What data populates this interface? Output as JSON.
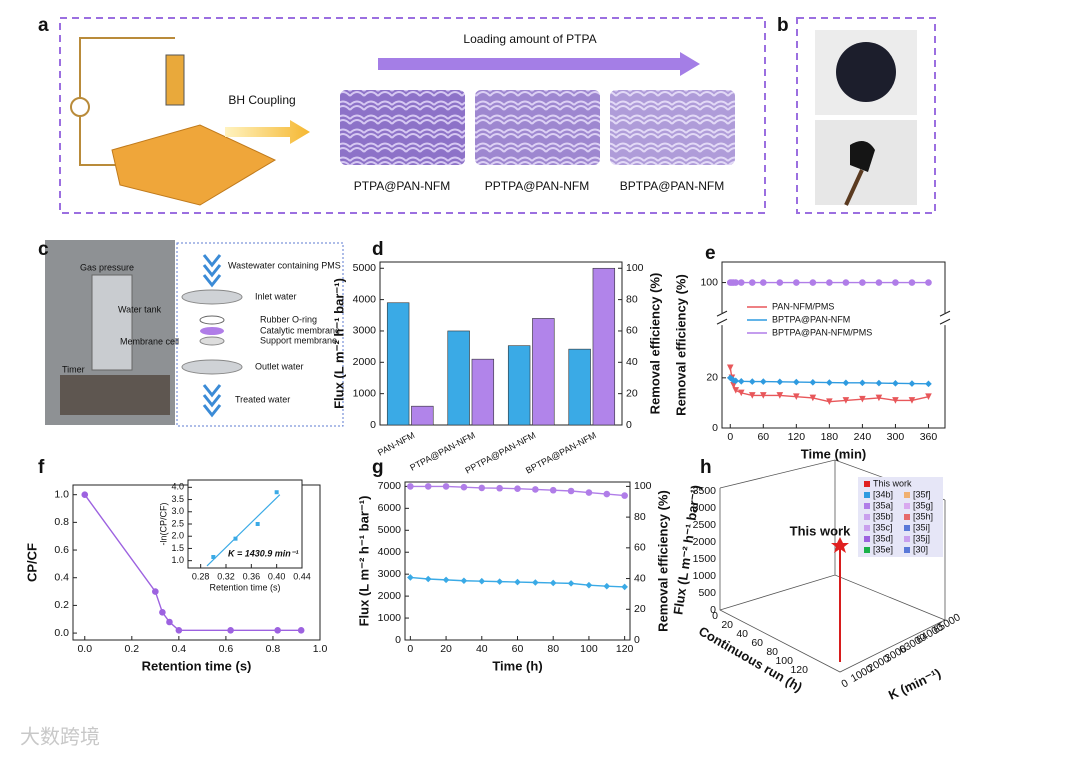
{
  "panel_letters": [
    "a",
    "b",
    "c",
    "d",
    "e",
    "f",
    "g",
    "h"
  ],
  "panel_a": {
    "arrow_label": "Loading amount of PTPA",
    "coupling": "BH Coupling",
    "samples": [
      "PTPA@PAN-NFM",
      "PPTPA@PAN-NFM",
      "BPTPA@PAN-NFM"
    ]
  },
  "panel_c": {
    "photo_labels": [
      "Gas pressure",
      "Water tank",
      "Membrane cell",
      "Timer"
    ],
    "top": "Wastewater containing PMS",
    "layers": [
      "Inlet water",
      "Rubber O-ring",
      "Catalytic membrane",
      "Support membrane",
      "Outlet water"
    ],
    "bottom": "Treated water"
  },
  "chart_data": [
    {
      "type": "bar",
      "categories": [
        "PAN-NFM",
        "PTPA@PAN-NFM",
        "PPTPA@PAN-NFM",
        "BPTPA@PAN-NFM"
      ],
      "series": [
        {
          "name": "Flux",
          "color": "#3aaae6",
          "values": [
            3900,
            3000,
            2530,
            2420
          ]
        },
        {
          "name": "Removal efficiency",
          "color": "#b184ea",
          "axis": "y2",
          "values": [
            12,
            42,
            68,
            100
          ]
        }
      ],
      "ylim": [
        0,
        5200
      ],
      "yticks": [
        0,
        1000,
        2000,
        3000,
        4000,
        5000
      ],
      "y2lim": [
        0,
        104
      ],
      "y2ticks": [
        0,
        20,
        40,
        60,
        80,
        100
      ],
      "ylabel": "Flux (L m⁻² h⁻¹ bar⁻¹)",
      "y2label": "Removal efficiency (%)"
    },
    {
      "type": "line",
      "x": [
        0,
        3,
        6,
        10,
        20,
        40,
        60,
        90,
        120,
        150,
        180,
        210,
        240,
        270,
        300,
        330,
        360
      ],
      "series": [
        {
          "name": "PAN-NFM/PMS",
          "color": "#e8575a",
          "marker": "triangle",
          "values": [
            24,
            20,
            17,
            15,
            14,
            13,
            13,
            13,
            12.5,
            12,
            10.5,
            11,
            11.5,
            12,
            11,
            11,
            12.5
          ]
        },
        {
          "name": "BPTPA@PAN-NFM",
          "color": "#2f9be0",
          "marker": "diamond",
          "values": [
            20,
            19.5,
            19,
            18.8,
            18.6,
            18.5,
            18.5,
            18.4,
            18.3,
            18.2,
            18.1,
            18,
            18,
            17.9,
            17.8,
            17.7,
            17.6
          ]
        },
        {
          "name": "BPTPA@PAN-NFM/PMS",
          "color": "#b07de8",
          "marker": "circle",
          "values": [
            100,
            100,
            100,
            100,
            100,
            100,
            100,
            100,
            100,
            100,
            100,
            100,
            100,
            100,
            100,
            100,
            100
          ]
        }
      ],
      "xlim": [
        -15,
        390
      ],
      "xticks": [
        0,
        60,
        120,
        180,
        240,
        300,
        360
      ],
      "ylim": [
        0,
        105
      ],
      "ybreak": [
        45,
        95
      ],
      "yticks": [
        0,
        20,
        100
      ],
      "xlabel": "Time (min)",
      "ylabel": "Removal efficiency (%)",
      "legend": "center"
    },
    {
      "type": "line",
      "x": [
        0,
        0.3,
        0.33,
        0.36,
        0.4,
        0.62,
        0.82,
        0.92
      ],
      "series": [
        {
          "name": "CP/CF",
          "color": "#9d62e0",
          "marker": "circle",
          "values": [
            1,
            0.3,
            0.15,
            0.08,
            0.02,
            0.02,
            0.02,
            0.02
          ]
        }
      ],
      "xlim": [
        -0.05,
        1.0
      ],
      "xticks": [
        {
          "value": 0,
          "label": "0.0"
        },
        {
          "value": 0.2,
          "label": "0.2"
        },
        {
          "value": 0.4,
          "label": "0.4"
        },
        {
          "value": 0.6,
          "label": "0.6"
        },
        {
          "value": 0.8,
          "label": "0.8"
        },
        {
          "value": 1,
          "label": "1.0"
        }
      ],
      "ylim": [
        -0.05,
        1.07
      ],
      "yticks": [
        {
          "value": 0,
          "label": "0.0"
        },
        {
          "value": 0.2,
          "label": "0.2"
        },
        {
          "value": 0.4,
          "label": "0.4"
        },
        {
          "value": 0.6,
          "label": "0.6"
        },
        {
          "value": 0.8,
          "label": "0.8"
        },
        {
          "value": 1,
          "label": "1.0"
        }
      ],
      "xlabel": "Retention time (s)",
      "ylabel": "CP/CF"
    },
    {
      "type": "scatter",
      "x": [
        0.3,
        0.335,
        0.37,
        0.4
      ],
      "series": [
        {
          "name": "-ln(CP/CF)",
          "color": "#3aaae6",
          "marker": "square",
          "values": [
            1.15,
            1.9,
            2.5,
            3.8
          ]
        }
      ],
      "xlim": [
        0.26,
        0.44
      ],
      "xticks": [
        0.28,
        0.32,
        0.36,
        {
          "value": 0.4,
          "label": "0.40"
        },
        0.44
      ],
      "ylim": [
        0.7,
        4.3
      ],
      "yticks": [
        {
          "value": 1,
          "label": "1.0"
        },
        1.5,
        {
          "value": 2,
          "label": "2.0"
        },
        2.5,
        {
          "value": 3,
          "label": "3.0"
        },
        3.5,
        {
          "value": 4,
          "label": "4.0"
        }
      ],
      "xlabel": "Retention time (s)",
      "ylabel": "-ln(CP/CF)",
      "annotation": "K = 1430.9 min⁻¹",
      "fit": true
    },
    {
      "type": "line",
      "x": [
        0,
        10,
        20,
        30,
        40,
        50,
        60,
        70,
        80,
        90,
        100,
        110,
        120
      ],
      "series": [
        {
          "name": "Flux",
          "color": "#3aaae6",
          "marker": "diamond",
          "values": [
            2850,
            2780,
            2740,
            2700,
            2680,
            2660,
            2640,
            2620,
            2600,
            2580,
            2500,
            2450,
            2420
          ]
        },
        {
          "name": "Removal efficiency",
          "color": "#b07de8",
          "marker": "circle",
          "axis": "y2",
          "values": [
            100,
            100,
            100,
            99.5,
            99,
            98.8,
            98.5,
            98,
            97.5,
            97,
            96,
            95,
            94
          ]
        }
      ],
      "xlim": [
        -3,
        123
      ],
      "xticks": [
        0,
        20,
        40,
        60,
        80,
        100,
        120
      ],
      "ylim": [
        0,
        7200
      ],
      "yticks": [
        0,
        1000,
        2000,
        3000,
        4000,
        5000,
        6000,
        7000
      ],
      "y2lim": [
        0,
        102.86
      ],
      "y2ticks": [
        0,
        20,
        40,
        60,
        80,
        100
      ],
      "xlabel": "Time (h)",
      "ylabel": "Flux (L m⁻² h⁻¹ bar⁻¹)",
      "y2label": "Removal efficiency (%)"
    }
  ],
  "panel_h": {
    "zticks": [
      0,
      500,
      1000,
      1500,
      2000,
      2500,
      3000,
      3500
    ],
    "zlabel": "Flux (L m⁻² h⁻¹ bar⁻¹)",
    "runticks": [
      0,
      20,
      40,
      60,
      80,
      100,
      120
    ],
    "runlabel": "Continuous run (h)",
    "kticks": [
      0,
      1000,
      2000,
      3000,
      63000,
      64000,
      65000
    ],
    "klabel": "K (min⁻¹)",
    "this_work": "This work",
    "legend": [
      "This work",
      "[34b]",
      "[35a]",
      "[35b]",
      "[35c]",
      "[35d]",
      "[35e]",
      "[35f]",
      "[35g]",
      "[35h]",
      "[35i]",
      "[35j]",
      "[30]"
    ]
  },
  "watermark": "大数跨境"
}
